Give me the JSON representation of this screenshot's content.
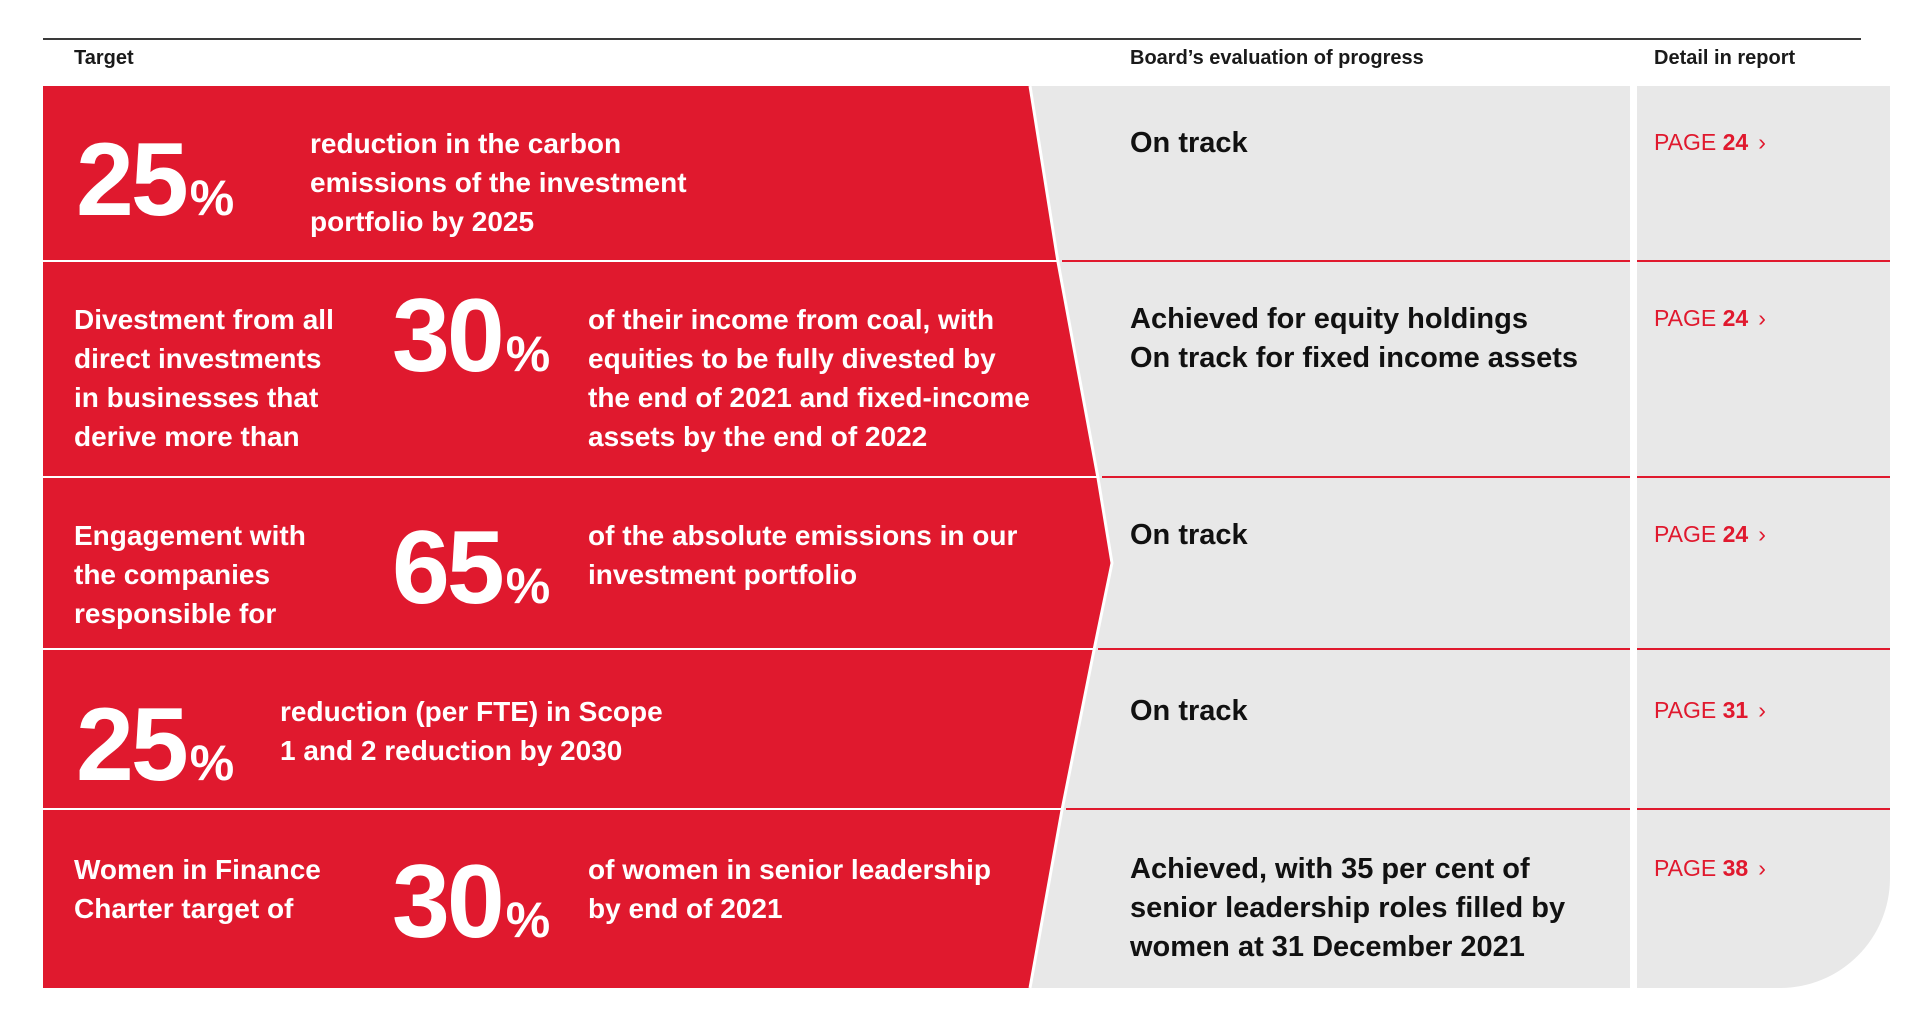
{
  "headers": {
    "target": "Target",
    "evaluation": "Board’s evaluation of progress",
    "detail": "Detail in report"
  },
  "rows": [
    {
      "big": "25",
      "pct": "%",
      "desc_lines": [
        "reduction in the carbon",
        "emissions of the investment",
        "portfolio by 2025"
      ],
      "eval_lines": [
        "On track"
      ],
      "page_label": "PAGE",
      "page_num": "24",
      "chevron": "›"
    },
    {
      "lead_lines": [
        "Divestment from all",
        "direct investments",
        "in businesses that",
        "derive more than"
      ],
      "big": "30",
      "pct": "%",
      "desc_lines": [
        "of their income from coal, with",
        "equities to be fully divested by",
        "the end of 2021 and fixed-income",
        "assets by the end of 2022"
      ],
      "eval_lines": [
        "Achieved for equity holdings",
        "On track for fixed income assets"
      ],
      "page_label": "PAGE",
      "page_num": "24",
      "chevron": "›"
    },
    {
      "lead_lines": [
        "Engagement with",
        "the companies",
        "responsible for"
      ],
      "big": "65",
      "pct": "%",
      "desc_lines": [
        "of the absolute emissions in our",
        "investment portfolio"
      ],
      "eval_lines": [
        "On track"
      ],
      "page_label": "PAGE",
      "page_num": "24",
      "chevron": "›"
    },
    {
      "big": "25",
      "pct": "%",
      "desc_lines": [
        "reduction (per FTE) in Scope",
        "1 and 2 reduction by 2030"
      ],
      "eval_lines": [
        "On track"
      ],
      "page_label": "PAGE",
      "page_num": "31",
      "chevron": "›"
    },
    {
      "lead_lines": [
        "Women in Finance",
        "Charter target of"
      ],
      "big": "30",
      "pct": "%",
      "desc_lines": [
        "of women in senior leadership",
        "by end of 2021"
      ],
      "eval_lines": [
        "Achieved, with 35 per cent of",
        "senior leadership roles filled by",
        "women at 31 December 2021"
      ],
      "page_label": "PAGE",
      "page_num": "38",
      "chevron": "›"
    }
  ],
  "colors": {
    "red": "#e0192e",
    "grey": "#e8e8e8",
    "text": "#111111"
  }
}
